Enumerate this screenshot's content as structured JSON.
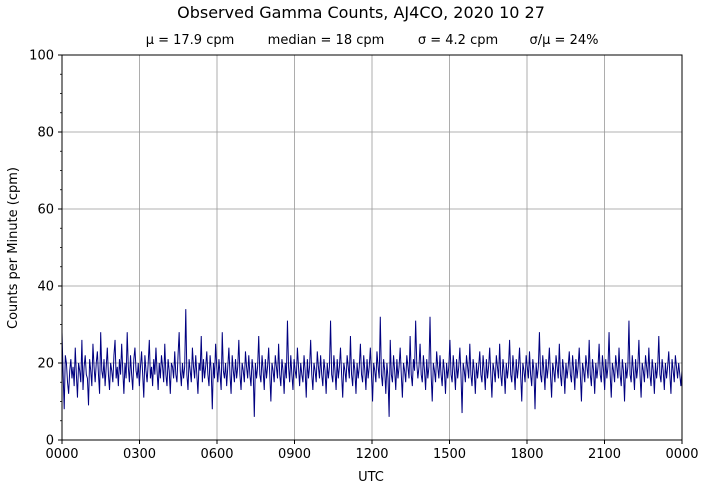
{
  "chart_data": {
    "type": "line",
    "title": "Observed Gamma Counts, AJ4CO, 2020 10 27",
    "subtitle": {
      "mean": "μ = 17.9 cpm",
      "median": "median = 18 cpm",
      "sigma": "σ = 4.2 cpm",
      "ratio": "σ/μ = 24%"
    },
    "xlabel": "UTC",
    "ylabel": "Counts per Minute (cpm)",
    "xlim": [
      0,
      1440
    ],
    "ylim": [
      0,
      100
    ],
    "x_ticks": [
      {
        "value": 0,
        "label": "0000"
      },
      {
        "value": 180,
        "label": "0300"
      },
      {
        "value": 360,
        "label": "0600"
      },
      {
        "value": 540,
        "label": "0900"
      },
      {
        "value": 720,
        "label": "1200"
      },
      {
        "value": 900,
        "label": "1500"
      },
      {
        "value": 1080,
        "label": "1800"
      },
      {
        "value": 1260,
        "label": "2100"
      },
      {
        "value": 1440,
        "label": "0000"
      }
    ],
    "y_ticks": [
      {
        "value": 0,
        "label": "0"
      },
      {
        "value": 20,
        "label": "20"
      },
      {
        "value": 40,
        "label": "40"
      },
      {
        "value": 60,
        "label": "60"
      },
      {
        "value": 80,
        "label": "80"
      },
      {
        "value": 100,
        "label": "100"
      }
    ],
    "grid": true,
    "line_color": "#000080",
    "grid_color": "#999999",
    "series": [
      {
        "values": [
          28,
          17,
          8,
          22,
          20,
          15,
          12,
          18,
          21,
          16,
          19,
          14,
          24,
          17,
          11,
          20,
          18,
          15,
          26,
          13,
          19,
          22,
          17,
          16,
          9,
          21,
          18,
          14,
          25,
          19,
          15,
          20,
          23,
          17,
          12,
          28,
          18,
          16,
          21,
          14,
          19,
          24,
          17,
          13,
          20,
          18,
          15,
          22,
          26,
          16,
          19,
          14,
          21,
          17,
          25,
          18,
          12,
          20,
          16,
          28,
          19,
          15,
          22,
          17,
          13,
          21,
          24,
          18,
          16,
          20,
          14,
          19,
          23,
          17,
          11,
          22,
          18,
          15,
          20,
          26,
          16,
          19,
          14,
          21,
          17,
          24,
          18,
          13,
          20,
          16,
          22,
          19,
          15,
          25,
          17,
          14,
          21,
          18,
          12,
          20,
          19,
          16,
          23,
          17,
          15,
          22,
          28,
          18,
          14,
          20,
          16,
          19,
          34,
          17,
          13,
          21,
          18,
          15,
          24,
          19,
          16,
          22,
          17,
          12,
          20,
          18,
          27,
          15,
          21,
          16,
          19,
          23,
          17,
          14,
          22,
          18,
          8,
          20,
          16,
          25,
          19,
          15,
          21,
          17,
          13,
          28,
          18,
          16,
          20,
          14,
          19,
          24,
          17,
          12,
          22,
          18,
          15,
          21,
          16,
          19,
          26,
          17,
          13,
          20,
          18,
          15,
          23,
          19,
          16,
          22,
          17,
          14,
          21,
          18,
          6,
          20,
          16,
          19,
          27,
          17,
          15,
          22,
          18,
          13,
          21,
          16,
          19,
          24,
          17,
          10,
          20,
          18,
          15,
          22,
          19,
          16,
          25,
          17,
          14,
          21,
          18,
          12,
          20,
          16,
          31,
          19,
          15,
          22,
          17,
          13,
          21,
          18,
          16,
          24,
          19,
          14,
          20,
          17,
          15,
          22,
          18,
          11,
          21,
          16,
          19,
          26,
          17,
          13,
          20,
          18,
          15,
          23,
          19,
          16,
          22,
          17,
          14,
          21,
          18,
          12,
          20,
          16,
          19,
          31,
          17,
          15,
          22,
          18,
          13,
          21,
          16,
          19,
          24,
          17,
          11,
          20,
          18,
          15,
          22,
          19,
          16,
          27,
          17,
          14,
          21,
          18,
          12,
          20,
          16,
          19,
          25,
          17,
          15,
          22,
          18,
          13,
          21,
          16,
          19,
          24,
          17,
          10,
          20,
          18,
          15,
          23,
          19,
          16,
          32,
          17,
          14,
          21,
          18,
          12,
          20,
          16,
          6,
          26,
          17,
          15,
          22,
          18,
          13,
          21,
          16,
          19,
          24,
          17,
          11,
          20,
          18,
          15,
          22,
          19,
          16,
          27,
          17,
          14,
          21,
          18,
          31,
          20,
          16,
          19,
          25,
          17,
          15,
          22,
          18,
          13,
          21,
          16,
          19,
          32,
          17,
          10,
          20,
          18,
          15,
          23,
          19,
          16,
          22,
          17,
          14,
          21,
          18,
          12,
          20,
          16,
          19,
          26,
          17,
          15,
          22,
          18,
          13,
          21,
          16,
          19,
          24,
          17,
          7,
          20,
          18,
          15,
          22,
          19,
          16,
          25,
          17,
          14,
          21,
          18,
          12,
          20,
          16,
          19,
          23,
          17,
          15,
          22,
          18,
          13,
          21,
          16,
          19,
          24,
          17,
          11,
          20,
          18,
          15,
          22,
          19,
          16,
          25,
          17,
          14,
          21,
          18,
          12,
          20,
          16,
          19,
          26,
          17,
          15,
          22,
          18,
          13,
          21,
          16,
          19,
          24,
          17,
          10,
          20,
          18,
          15,
          22,
          19,
          16,
          23,
          17,
          14,
          21,
          18,
          8,
          20,
          16,
          19,
          28,
          17,
          15,
          22,
          18,
          13,
          21,
          16,
          19,
          24,
          17,
          11,
          20,
          18,
          15,
          22,
          19,
          16,
          25,
          17,
          14,
          21,
          18,
          12,
          20,
          16,
          19,
          23,
          17,
          15,
          22,
          18,
          13,
          21,
          16,
          19,
          24,
          17,
          10,
          20,
          18,
          15,
          22,
          19,
          16,
          26,
          17,
          14,
          21,
          18,
          12,
          20,
          16,
          19,
          25,
          17,
          15,
          22,
          18,
          13,
          21,
          16,
          19,
          28,
          17,
          11,
          20,
          18,
          15,
          22,
          19,
          16,
          24,
          17,
          14,
          21,
          18,
          10,
          20,
          16,
          19,
          31,
          17,
          15,
          22,
          18,
          13,
          21,
          16,
          19,
          26,
          17,
          11,
          20,
          18,
          15,
          22,
          19,
          16,
          24,
          17,
          14,
          21,
          18,
          12,
          20,
          16,
          19,
          27,
          17,
          15,
          21,
          18,
          13,
          20,
          16,
          19,
          23,
          17,
          12,
          21,
          18,
          15,
          22,
          19,
          16,
          20,
          17,
          14,
          18
        ]
      }
    ]
  }
}
